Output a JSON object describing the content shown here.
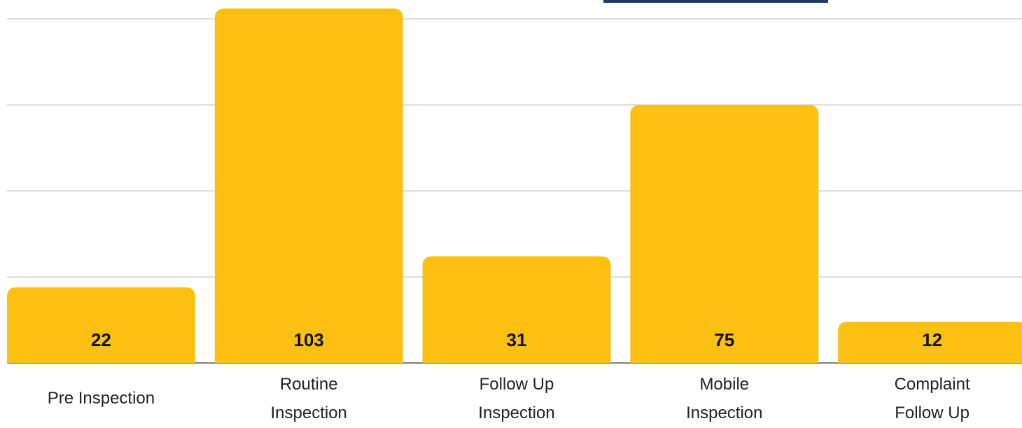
{
  "chart_data": {
    "type": "bar",
    "categories": [
      "Pre Inspection",
      "Routine\nInspection",
      "Follow Up\nInspection",
      "Mobile\nInspection",
      "Complaint\nFollow Up"
    ],
    "values": [
      22,
      103,
      31,
      75,
      12
    ],
    "color": "#fbc012",
    "ylim": [
      0,
      105
    ],
    "yticks": [
      0,
      25,
      50,
      75,
      100
    ],
    "grid": true
  }
}
